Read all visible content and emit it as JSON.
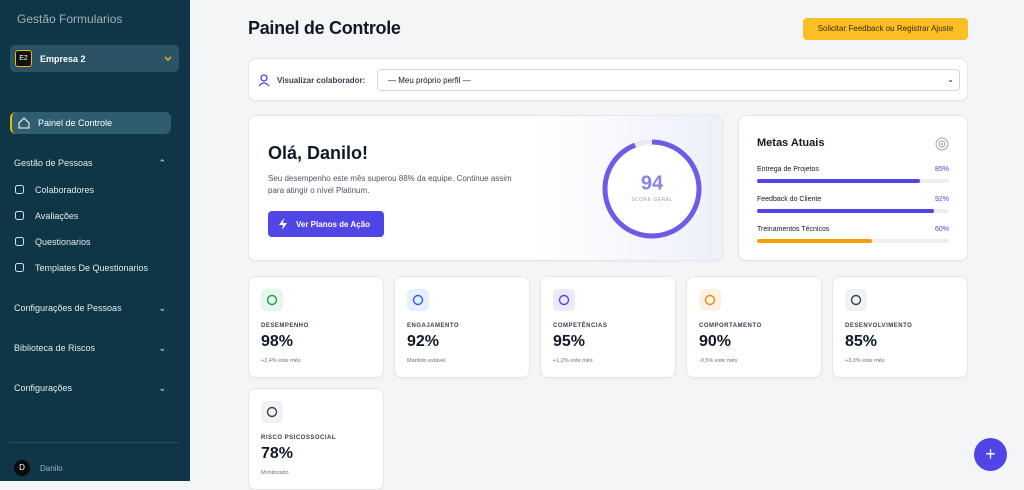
{
  "sidebar": {
    "brand": "Gestão Formularios",
    "company": {
      "badge": "E2",
      "name": "Empresa 2"
    },
    "active": "Painel de Controle",
    "section": {
      "title": "Gestão de Pessoas",
      "items": [
        "Colaboradores",
        "Avaliações",
        "Questionarios",
        "Templates De Questionarios"
      ]
    },
    "groups": [
      "Configurações de Pessoas",
      "Biblioteca de Riscos",
      "Configurações"
    ],
    "user": {
      "initial": "D",
      "name": "Danilo"
    }
  },
  "header": {
    "title": "Painel de Controle",
    "button": "Solicitar Feedback ou Registrar Ajuste"
  },
  "filter": {
    "label": "Visualizar colaborador:",
    "selected": "— Meu próprio perfil —"
  },
  "welcome": {
    "title": "Olá, Danilo!",
    "text": "Seu desempenho este mês superou 88% da equipe. Continue assim para atingir o nível Platinum.",
    "button": "Ver Planos de Ação",
    "score": 94,
    "score_label": "SCORE GERAL"
  },
  "goals": {
    "title": "Metas Atuais",
    "items": [
      {
        "name": "Entrega de Projetos",
        "progress": {
          "value": 85,
          "label": "85%"
        }
      },
      {
        "name": "Feedback do Cliente",
        "progress": {
          "value": 92,
          "label": "92%"
        }
      },
      {
        "name": "Treinamentos Técnicos",
        "progress": {
          "value": 60,
          "label": "60%"
        }
      }
    ]
  },
  "metrics": [
    {
      "label": "DESEMPENHO",
      "value": "98%",
      "note": "+2,4% este mês"
    },
    {
      "label": "ENGAJAMENTO",
      "value": "92%",
      "note": "Mantido estável"
    },
    {
      "label": "COMPETÊNCIAS",
      "value": "95%",
      "note": "+1,2% este mês"
    },
    {
      "label": "COMPORTAMENTO",
      "value": "90%",
      "note": "-0,5% este mês"
    },
    {
      "label": "DESENVOLVIMENTO",
      "value": "85%",
      "note": "+3,0% este mês"
    },
    {
      "label": "RISCO PSICOSSOCIAL",
      "value": "78%",
      "note": "Monitorado"
    }
  ],
  "fab": "+"
}
